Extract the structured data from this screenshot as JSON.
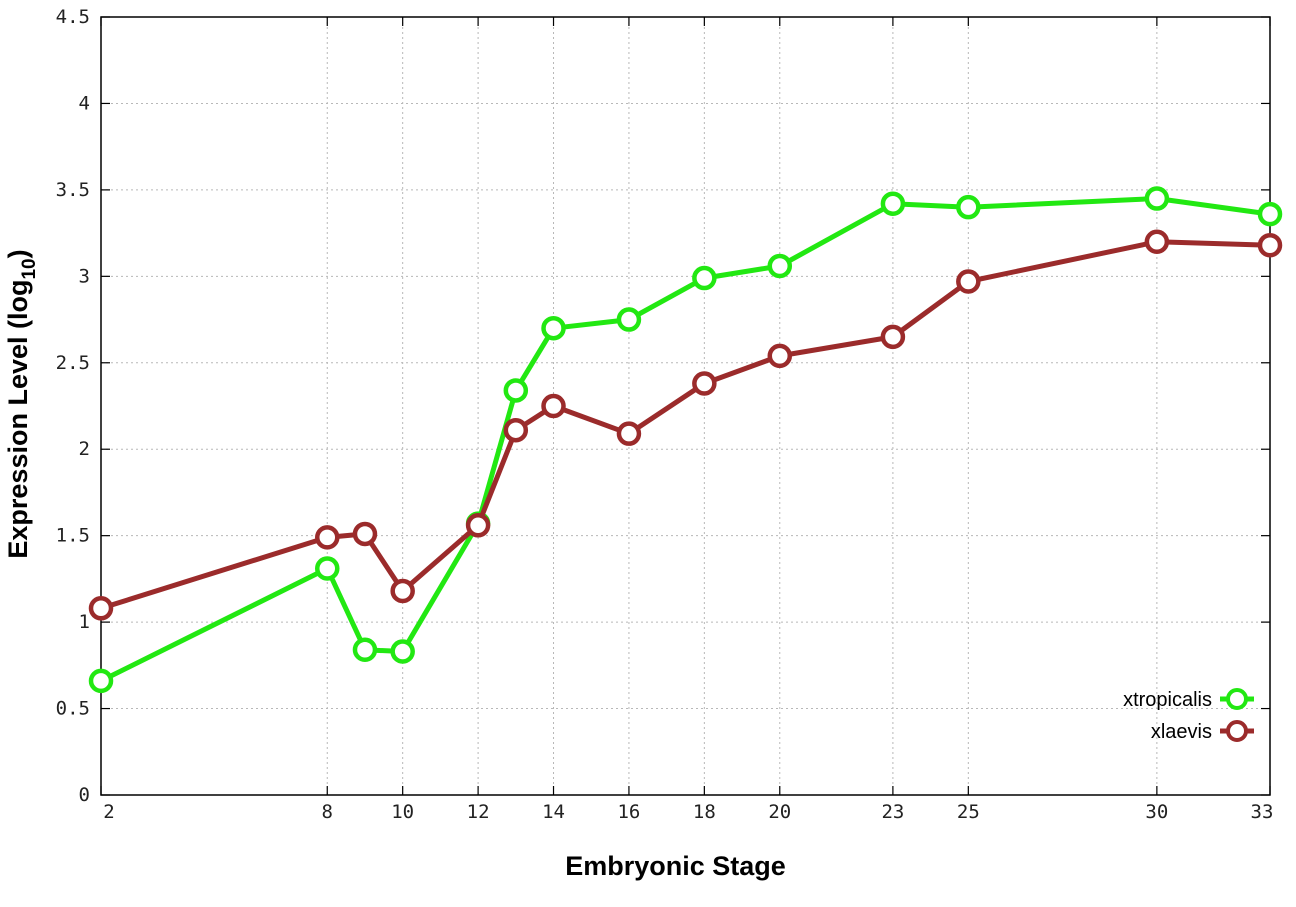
{
  "chart_data": {
    "type": "line",
    "xlabel": "Embryonic Stage",
    "ylabel_main": "Expression Level (log",
    "ylabel_sub": "10",
    "ylabel_close": ")",
    "xlim": [
      2,
      33
    ],
    "ylim": [
      0,
      4.5
    ],
    "x_ticks": [
      2,
      8,
      10,
      12,
      14,
      16,
      18,
      20,
      23,
      25,
      30,
      33
    ],
    "y_ticks": [
      0,
      0.5,
      1,
      1.5,
      2,
      2.5,
      3,
      3.5,
      4,
      4.5
    ],
    "grid": true,
    "legend_position": "bottom-right",
    "series": [
      {
        "name": "xtropicalis",
        "color": "#22e812",
        "x": [
          2,
          8,
          9,
          10,
          12,
          13,
          14,
          16,
          18,
          20,
          23,
          25,
          30,
          33
        ],
        "y": [
          0.66,
          1.31,
          0.84,
          0.83,
          1.57,
          2.34,
          2.7,
          2.75,
          2.99,
          3.06,
          3.42,
          3.4,
          3.45,
          3.36
        ]
      },
      {
        "name": "xlaevis",
        "color": "#9b2b2b",
        "x": [
          2,
          8,
          9,
          10,
          12,
          13,
          14,
          16,
          18,
          20,
          23,
          25,
          30,
          33
        ],
        "y": [
          1.08,
          1.49,
          1.51,
          1.18,
          1.56,
          2.11,
          2.25,
          2.09,
          2.38,
          2.54,
          2.65,
          2.97,
          3.2,
          3.18
        ]
      }
    ]
  }
}
